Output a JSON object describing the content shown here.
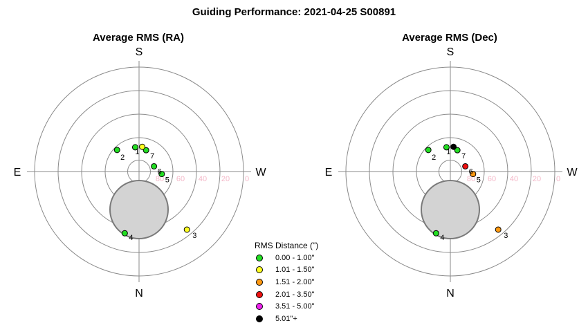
{
  "colors": {
    "ring": "#8a8a8a",
    "horizon_fill": "#d3d3d3",
    "tick_label": "#f4b8c8"
  },
  "chart_data": {
    "title": "Guiding Performance: 2021-04-25 S00891",
    "type": "scatter",
    "projection": "polar (azimuth / altitude)",
    "compass": {
      "top": "S",
      "bottom": "N",
      "left": "E",
      "right": "W"
    },
    "altitude_ticks": [
      "80",
      "60",
      "40",
      "20",
      "0"
    ],
    "altitude_rings": [
      80,
      60,
      40,
      20,
      0
    ],
    "legend": {
      "title": "RMS Distance (\")",
      "entries": [
        {
          "label": "0.00 - 1.00\"",
          "color": "#22dd22"
        },
        {
          "label": "1.01 - 1.50\"",
          "color": "#ffff22"
        },
        {
          "label": "1.51 - 2.00\"",
          "color": "#ff9911"
        },
        {
          "label": "2.01 - 3.50\"",
          "color": "#ee1111"
        },
        {
          "label": "3.51 - 5.00\"",
          "color": "#ee22ee"
        },
        {
          "label": "5.01\"+",
          "color": "#000000"
        }
      ]
    },
    "panels": [
      {
        "title": "Average RMS (RA)",
        "points": [
          {
            "label": "1",
            "x": -0.17,
            "y": 1.07,
            "category": 0
          },
          {
            "label": "2",
            "x": -0.97,
            "y": 0.95,
            "category": 0
          },
          {
            "label": "3",
            "x": 2.11,
            "y": -2.56,
            "category": 1
          },
          {
            "label": "4",
            "x": -0.63,
            "y": -2.72,
            "category": 0
          },
          {
            "label": "5",
            "x": 1.0,
            "y": -0.11,
            "category": 0
          },
          {
            "label": "6",
            "x": 0.66,
            "y": 0.23,
            "category": 0
          },
          {
            "label": "7",
            "x": 0.31,
            "y": 0.94,
            "category": 0
          },
          {
            "label": "",
            "x": 0.14,
            "y": 1.09,
            "category": 1
          }
        ]
      },
      {
        "title": "Average RMS (Dec)",
        "points": [
          {
            "label": "1",
            "x": -0.17,
            "y": 1.07,
            "category": 0
          },
          {
            "label": "2",
            "x": -0.97,
            "y": 0.95,
            "category": 0
          },
          {
            "label": "3",
            "x": 2.11,
            "y": -2.56,
            "category": 2
          },
          {
            "label": "4",
            "x": -0.63,
            "y": -2.72,
            "category": 0
          },
          {
            "label": "5",
            "x": 1.0,
            "y": -0.11,
            "category": 2
          },
          {
            "label": "6",
            "x": 0.66,
            "y": 0.23,
            "category": 3
          },
          {
            "label": "7",
            "x": 0.31,
            "y": 0.94,
            "category": 0
          },
          {
            "label": "",
            "x": 0.14,
            "y": 1.09,
            "category": 5
          }
        ]
      }
    ]
  }
}
